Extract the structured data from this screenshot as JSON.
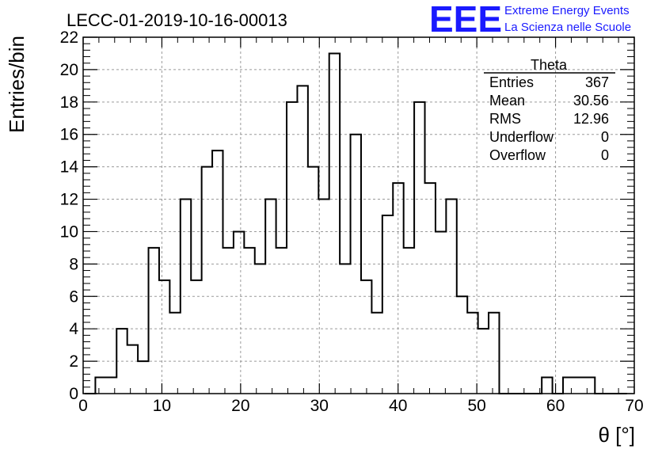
{
  "chart_data": {
    "type": "bar",
    "title": "LECC-01-2019-10-16-00013",
    "xlabel": "θ [°]",
    "ylabel": "Entries/bin",
    "xlim": [
      0,
      70
    ],
    "ylim": [
      0,
      22
    ],
    "x_ticks": [
      "0",
      "10",
      "20",
      "30",
      "40",
      "50",
      "60",
      "70"
    ],
    "y_ticks": [
      "0",
      "2",
      "4",
      "6",
      "8",
      "10",
      "12",
      "14",
      "16",
      "18",
      "20",
      "22"
    ],
    "grid": true,
    "bin_width": 1.35,
    "bin_start": 0.2,
    "values": [
      0,
      1,
      1,
      4,
      3,
      2,
      9,
      7,
      5,
      12,
      7,
      14,
      15,
      9,
      10,
      9,
      8,
      12,
      9,
      18,
      19,
      14,
      12,
      21,
      8,
      16,
      7,
      5,
      11,
      13,
      9,
      18,
      13,
      10,
      12,
      6,
      5,
      4,
      5,
      0,
      0,
      0,
      0,
      1,
      0,
      1,
      1,
      1,
      0,
      0,
      0
    ]
  },
  "stats_box": {
    "title": "Theta",
    "rows": [
      {
        "label": "Entries",
        "value": "367"
      },
      {
        "label": "Mean",
        "value": "30.56"
      },
      {
        "label": "RMS",
        "value": "12.96"
      },
      {
        "label": "Underflow",
        "value": "0"
      },
      {
        "label": "Overflow",
        "value": "0"
      }
    ]
  },
  "logo": {
    "text": "EEE",
    "line1": "Extreme Energy Events",
    "line2": "La Scienza nelle Scuole",
    "color": "#1a1aff"
  }
}
